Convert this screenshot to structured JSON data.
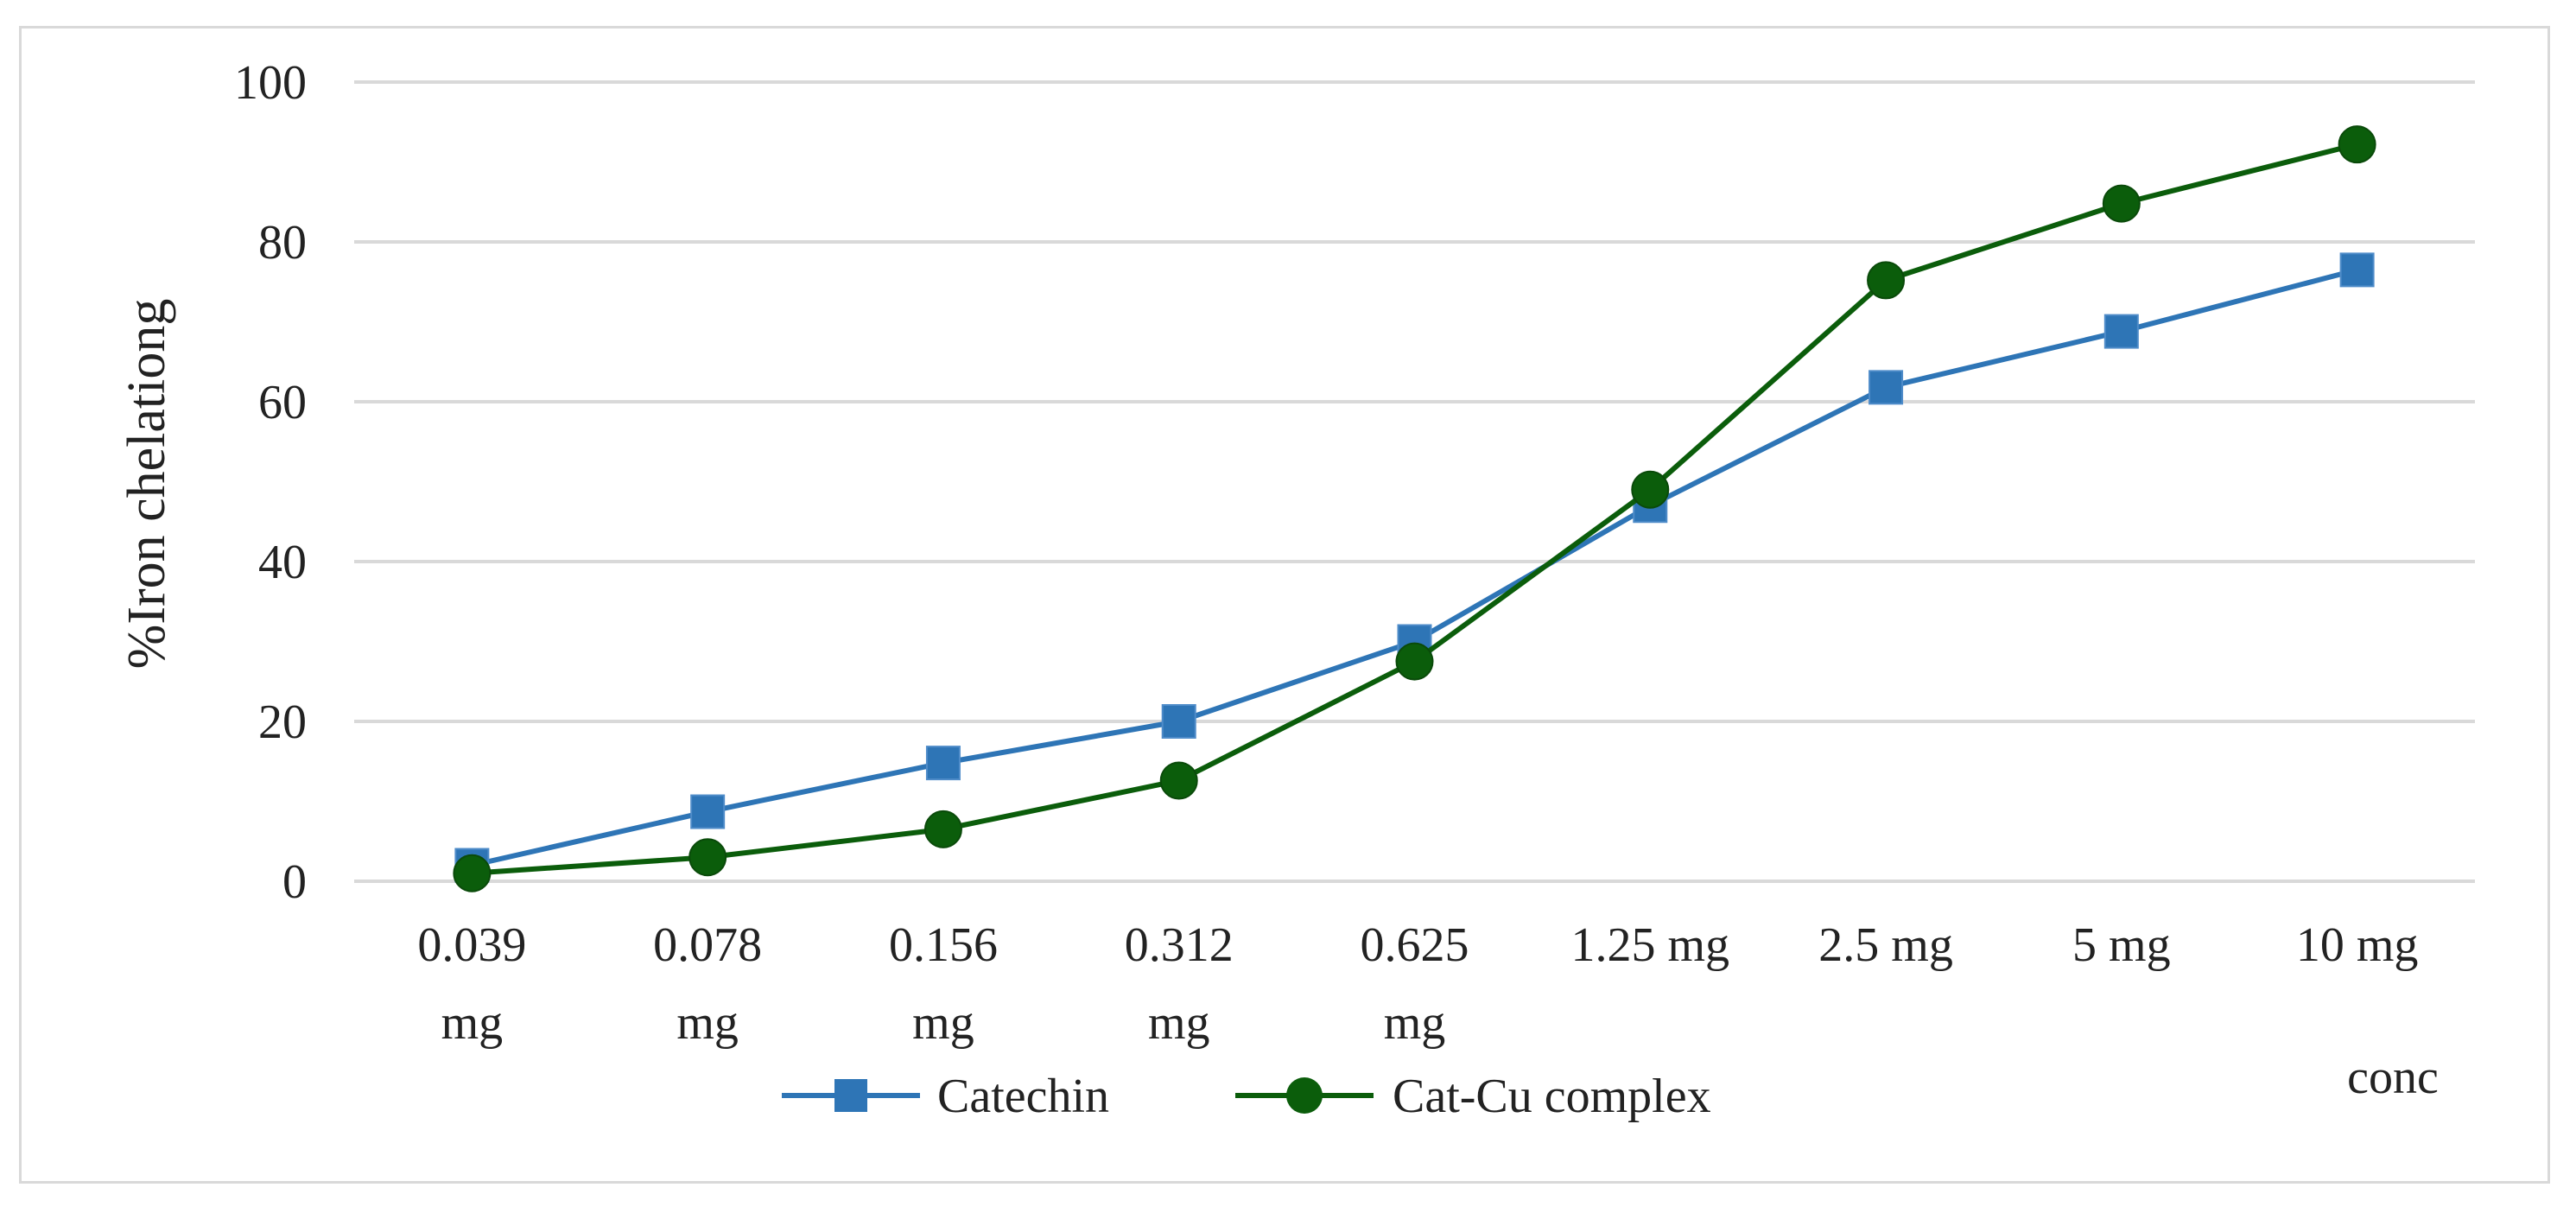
{
  "chart_data": {
    "type": "line",
    "title": "",
    "xlabel": "conc",
    "ylabel": "%Iron chelationg",
    "ylim": [
      0,
      100
    ],
    "yticks": [
      0,
      20,
      40,
      60,
      80,
      100
    ],
    "grid": true,
    "legend_position": "bottom",
    "categories": [
      [
        "0.039",
        "mg"
      ],
      [
        "0.078",
        "mg"
      ],
      [
        "0.156",
        "mg"
      ],
      [
        "0.312",
        "mg"
      ],
      [
        "0.625",
        "mg"
      ],
      [
        "1.25 mg"
      ],
      [
        "2.5 mg"
      ],
      [
        "5 mg"
      ],
      [
        "10 mg"
      ]
    ],
    "series": [
      {
        "name": "Catechin",
        "marker": "square",
        "color": "#2e75b6",
        "values": [
          2,
          8.7,
          14.8,
          20,
          30,
          47,
          61.8,
          68.8,
          76.5
        ]
      },
      {
        "name": "Cat-Cu complex",
        "marker": "circle",
        "color": "#0b5d0b",
        "values": [
          1,
          3,
          6.5,
          12.6,
          27.5,
          49,
          75.2,
          84.8,
          92.2
        ]
      }
    ]
  }
}
